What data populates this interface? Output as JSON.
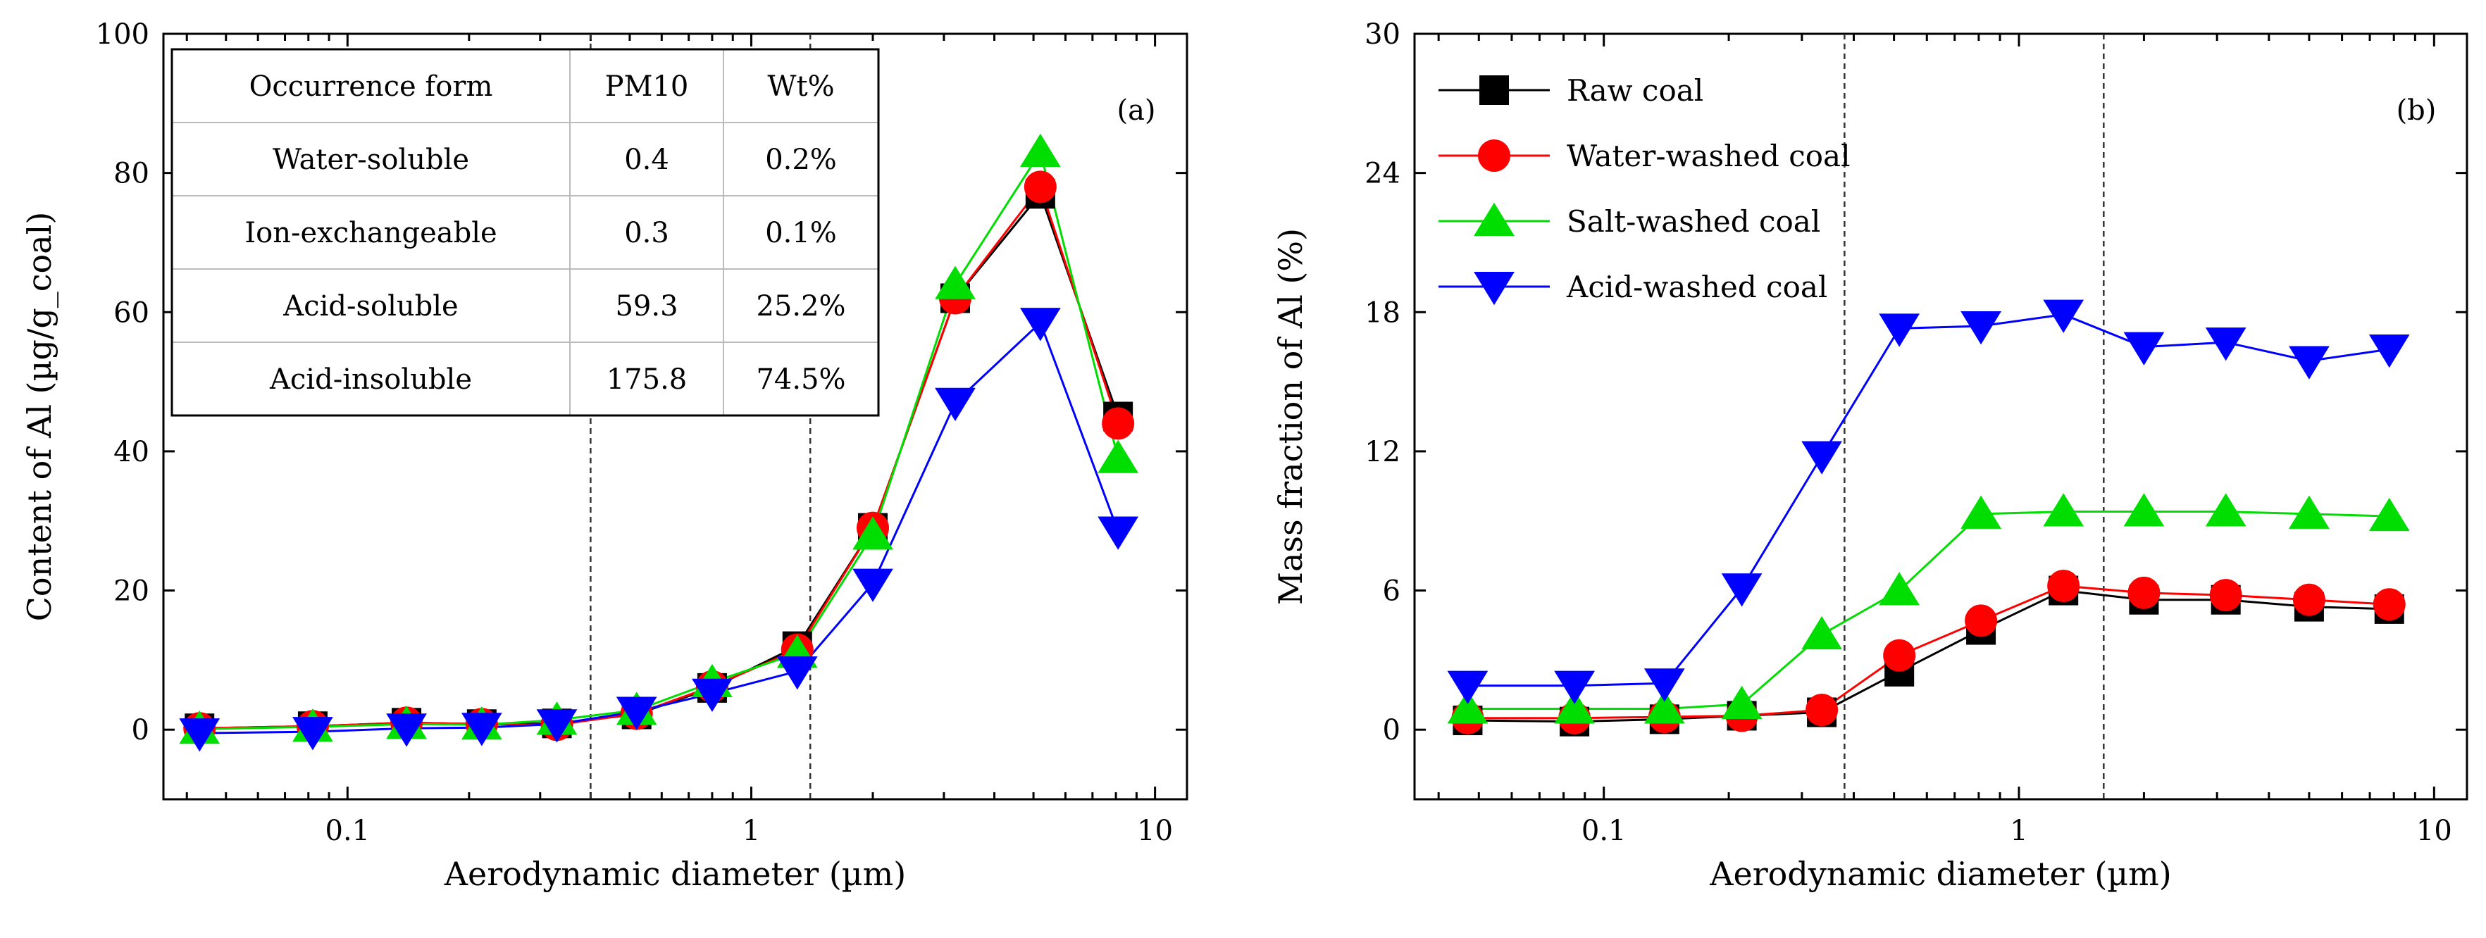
{
  "chart_data": [
    {
      "type": "line",
      "panel_label": "(a)",
      "xlabel": "Aerodynamic diameter (µm)",
      "ylabel": "Content of Al (µg/g_coal)",
      "xscale": "log",
      "xlim": [
        0.035,
        12
      ],
      "ylim": [
        -10,
        100
      ],
      "yticks": [
        0,
        20,
        40,
        60,
        80,
        100
      ],
      "xticks": [
        {
          "value": 0.1,
          "label": "0.1"
        },
        {
          "value": 1,
          "label": "1"
        },
        {
          "value": 10,
          "label": "10"
        }
      ],
      "reference_lines_x": [
        0.4,
        1.4
      ],
      "x": [
        0.043,
        0.082,
        0.14,
        0.215,
        0.33,
        0.52,
        0.8,
        1.3,
        2.0,
        3.2,
        5.2,
        8.1
      ],
      "series": [
        {
          "name": "Raw coal",
          "color": "#000000",
          "marker": "square",
          "values": [
            0.2,
            0.5,
            1.0,
            0.8,
            0.9,
            2.2,
            6.0,
            12.0,
            29.0,
            62.0,
            77.0,
            45.0
          ]
        },
        {
          "name": "Water-washed coal",
          "color": "#ff0000",
          "marker": "circle",
          "values": [
            0.2,
            0.5,
            1.0,
            0.8,
            0.7,
            2.3,
            6.2,
            11.5,
            29.0,
            62.0,
            78.0,
            44.0
          ]
        },
        {
          "name": "Salt-washed coal",
          "color": "#00dd00",
          "marker": "triangle-up",
          "values": [
            0.1,
            0.4,
            0.8,
            0.7,
            1.4,
            2.8,
            6.8,
            11.0,
            28.0,
            64.0,
            83.0,
            39.0
          ]
        },
        {
          "name": "Acid-washed coal",
          "color": "#0000ff",
          "marker": "triangle-down",
          "values": [
            -0.5,
            -0.3,
            0.2,
            0.3,
            0.8,
            2.6,
            5.2,
            8.4,
            21.0,
            47.0,
            58.5,
            28.5
          ]
        }
      ],
      "table": {
        "headers": [
          "Occurrence form",
          "PM10",
          "Wt%"
        ],
        "rows": [
          [
            "Water-soluble",
            "0.4",
            "0.2%"
          ],
          [
            "Ion-exchangeable",
            "0.3",
            "0.1%"
          ],
          [
            "Acid-soluble",
            "59.3",
            "25.2%"
          ],
          [
            "Acid-insoluble",
            "175.8",
            "74.5%"
          ]
        ]
      }
    },
    {
      "type": "line",
      "panel_label": "(b)",
      "xlabel": "Aerodynamic diameter (µm)",
      "ylabel": "Mass fraction of Al (%)",
      "xscale": "log",
      "xlim": [
        0.035,
        12
      ],
      "ylim": [
        -3,
        30
      ],
      "yticks": [
        0,
        6,
        12,
        18,
        24,
        30
      ],
      "xticks": [
        {
          "value": 0.1,
          "label": "0.1"
        },
        {
          "value": 1,
          "label": "1"
        },
        {
          "value": 10,
          "label": "10"
        }
      ],
      "reference_lines_x": [
        0.38,
        1.6
      ],
      "legend_position": "top-left",
      "x": [
        0.047,
        0.085,
        0.14,
        0.215,
        0.335,
        0.515,
        0.81,
        1.28,
        2.0,
        3.15,
        5.0,
        7.8
      ],
      "series": [
        {
          "name": "Raw coal",
          "color": "#000000",
          "marker": "square",
          "values": [
            0.4,
            0.35,
            0.45,
            0.6,
            0.75,
            2.5,
            4.3,
            6.0,
            5.6,
            5.6,
            5.3,
            5.2
          ]
        },
        {
          "name": "Water-washed coal",
          "color": "#ff0000",
          "marker": "circle",
          "values": [
            0.5,
            0.5,
            0.55,
            0.6,
            0.85,
            3.2,
            4.7,
            6.2,
            5.9,
            5.8,
            5.6,
            5.4
          ]
        },
        {
          "name": "Salt-washed coal",
          "color": "#00dd00",
          "marker": "triangle-up",
          "values": [
            0.9,
            0.9,
            0.9,
            1.1,
            4.1,
            6.0,
            9.3,
            9.4,
            9.4,
            9.4,
            9.3,
            9.2
          ]
        },
        {
          "name": "Acid-washed coal",
          "color": "#0000ff",
          "marker": "triangle-down",
          "values": [
            1.9,
            1.9,
            2.0,
            6.1,
            11.8,
            17.3,
            17.4,
            17.9,
            16.5,
            16.7,
            15.9,
            16.4
          ]
        }
      ]
    }
  ]
}
